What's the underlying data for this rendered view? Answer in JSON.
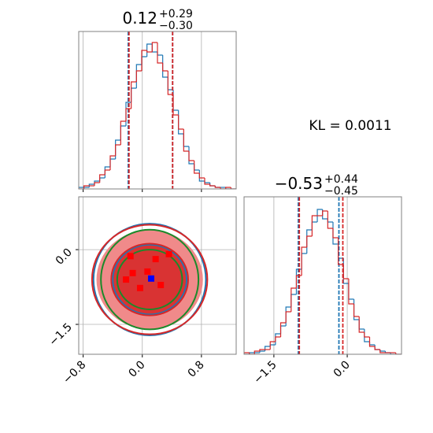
{
  "annotation": "KL = 0.0011",
  "chart_data": [
    {
      "type": "histogram",
      "title": "0.12",
      "title_upper": "+0.29",
      "title_lower": "−0.30",
      "xlim": [
        -0.86,
        1.27
      ],
      "ylim": [
        0,
        100
      ],
      "xticks": [
        {
          "value": -0.8,
          "label": "−0.8"
        },
        {
          "value": 0.0,
          "label": "0.0"
        },
        {
          "value": 0.8,
          "label": "0.8"
        }
      ],
      "grid": true,
      "bins": [
        -0.86,
        -0.789,
        -0.718,
        -0.647,
        -0.576,
        -0.505,
        -0.434,
        -0.363,
        -0.292,
        -0.221,
        -0.15,
        -0.079,
        -0.008,
        0.063,
        0.134,
        0.205,
        0.276,
        0.347,
        0.418,
        0.489,
        0.56,
        0.631,
        0.702,
        0.773,
        0.844,
        0.915,
        0.986,
        1.057,
        1.128,
        1.199,
        1.27
      ],
      "series": [
        {
          "color": "#1f77b4",
          "quantiles": [
            -0.19,
            0.41
          ],
          "values": [
            1,
            1,
            3,
            5,
            7,
            14,
            19,
            31,
            40,
            55,
            64,
            79,
            84,
            92,
            87,
            85,
            71,
            63,
            50,
            35,
            27,
            16,
            12,
            5,
            4,
            2,
            1,
            1,
            0,
            0
          ]
        },
        {
          "color": "#d62728",
          "quantiles": [
            -0.18,
            0.41
          ],
          "values": [
            0,
            2,
            2,
            4,
            9,
            12,
            21,
            28,
            43,
            51,
            68,
            75,
            88,
            87,
            93,
            80,
            75,
            60,
            47,
            38,
            24,
            18,
            10,
            7,
            3,
            2,
            1,
            0,
            1,
            0
          ]
        }
      ]
    },
    {
      "type": "contour",
      "xlim": [
        -0.86,
        1.27
      ],
      "ylim": [
        -2.1,
        1.06
      ],
      "xticks": [
        {
          "value": -0.8,
          "label": "−0.8"
        },
        {
          "value": 0.0,
          "label": "0.0"
        },
        {
          "value": 0.8,
          "label": "0.8"
        }
      ],
      "yticks": [
        {
          "value": 0.0,
          "label": "0.0"
        },
        {
          "value": -1.5,
          "label": "−1.5"
        }
      ],
      "grid": true,
      "center": [
        0.1,
        -0.6
      ],
      "contours": [
        {
          "color": "#f08a8a",
          "fill": true,
          "rx": 0.72,
          "ry": 1.0
        },
        {
          "color": "#d93333",
          "fill": true,
          "rx": 0.5,
          "ry": 0.7
        },
        {
          "color": "#1f77b4",
          "fill": false,
          "rx": 0.76,
          "ry": 1.12
        },
        {
          "color": "#1f77b4",
          "fill": false,
          "rx": 0.5,
          "ry": 0.7
        },
        {
          "color": "#d62728",
          "fill": false,
          "rx": 0.78,
          "ry": 1.1
        },
        {
          "color": "#d62728",
          "fill": false,
          "rx": 0.52,
          "ry": 0.72
        },
        {
          "color": "#1a8a2a",
          "fill": false,
          "rx": 0.66,
          "ry": 1.0
        },
        {
          "color": "#1a8a2a",
          "fill": false,
          "rx": 0.44,
          "ry": 0.6
        }
      ],
      "points": [
        {
          "color": "#ff0000",
          "x": [
            -0.16,
            0.18,
            0.36,
            -0.13,
            0.07,
            -0.22,
            -0.03,
            0.25
          ],
          "y": [
            -0.13,
            -0.19,
            -0.09,
            -0.47,
            -0.44,
            -0.6,
            -0.77,
            -0.71
          ]
        },
        {
          "color": "#0000ff",
          "x": [
            0.12
          ],
          "y": [
            -0.58
          ]
        }
      ]
    },
    {
      "type": "histogram",
      "title": "−0.53",
      "title_upper": "+0.44",
      "title_lower": "−0.45",
      "xlim": [
        -2.11,
        1.11
      ],
      "ylim": [
        0,
        100
      ],
      "xticks": [
        {
          "value": -1.5,
          "label": "−1.5"
        },
        {
          "value": 0.0,
          "label": "0.0"
        }
      ],
      "grid": true,
      "bins": [
        -2.11,
        -2.003,
        -1.896,
        -1.789,
        -1.682,
        -1.575,
        -1.468,
        -1.361,
        -1.254,
        -1.147,
        -1.04,
        -0.933,
        -0.826,
        -0.719,
        -0.612,
        -0.505,
        -0.398,
        -0.291,
        -0.184,
        -0.077,
        0.03,
        0.137,
        0.244,
        0.351,
        0.458,
        0.565,
        0.672,
        0.779,
        0.886,
        0.993,
        1.1
      ],
      "series": [
        {
          "color": "#1f77b4",
          "quantiles": [
            -1.0,
            -0.17
          ],
          "values": [
            0,
            1,
            1,
            2,
            5,
            6,
            13,
            18,
            30,
            38,
            54,
            64,
            79,
            84,
            92,
            86,
            84,
            70,
            61,
            45,
            35,
            22,
            16,
            8,
            6,
            3,
            2,
            1,
            0,
            0
          ]
        },
        {
          "color": "#d62728",
          "quantiles": [
            -0.98,
            -0.09
          ],
          "values": [
            1,
            0,
            2,
            3,
            3,
            8,
            11,
            20,
            27,
            42,
            50,
            68,
            75,
            88,
            88,
            91,
            80,
            74,
            57,
            48,
            32,
            24,
            14,
            11,
            5,
            3,
            1,
            1,
            1,
            0
          ]
        }
      ]
    }
  ]
}
